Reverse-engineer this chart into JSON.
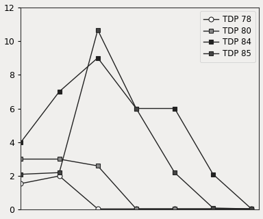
{
  "title": "",
  "xlabel": "",
  "ylabel": "",
  "xlim": [
    0,
    620
  ],
  "ylim": [
    0,
    12
  ],
  "yticks": [
    0,
    2,
    4,
    6,
    8,
    10,
    12
  ],
  "background_color": "#f0efed",
  "plot_bg_color": "#f0efed",
  "series": [
    {
      "label": "TDP 78",
      "x": [
        0,
        100,
        200,
        300,
        400,
        500,
        600
      ],
      "y": [
        1.55,
        2.0,
        0.05,
        0.05,
        0.05,
        0.05,
        0.05
      ],
      "color": "#222222",
      "marker": "o",
      "marker_fill": "white",
      "linewidth": 1.0,
      "markersize": 5
    },
    {
      "label": "TDP 80",
      "x": [
        0,
        100,
        200,
        300,
        400,
        500,
        600
      ],
      "y": [
        3.0,
        3.0,
        2.6,
        0.05,
        0.05,
        0.05,
        0.05
      ],
      "color": "#222222",
      "marker": "s",
      "marker_fill": "#888888",
      "linewidth": 1.0,
      "markersize": 4
    },
    {
      "label": "TDP 84",
      "x": [
        0,
        100,
        200,
        300,
        400,
        500,
        600
      ],
      "y": [
        4.0,
        7.0,
        9.0,
        6.0,
        6.0,
        2.1,
        0.05
      ],
      "color": "#222222",
      "marker": "s",
      "marker_fill": "#222222",
      "linewidth": 1.0,
      "markersize": 4
    },
    {
      "label": "TDP 85",
      "x": [
        0,
        100,
        200,
        300,
        400,
        500,
        600
      ],
      "y": [
        2.1,
        2.2,
        10.65,
        6.0,
        2.2,
        0.1,
        0.05
      ],
      "color": "#222222",
      "marker": "s",
      "marker_fill": "#444444",
      "linewidth": 1.0,
      "markersize": 4
    }
  ],
  "legend_loc": "upper right",
  "legend_fontsize": 8.5,
  "tick_fontsize": 9
}
